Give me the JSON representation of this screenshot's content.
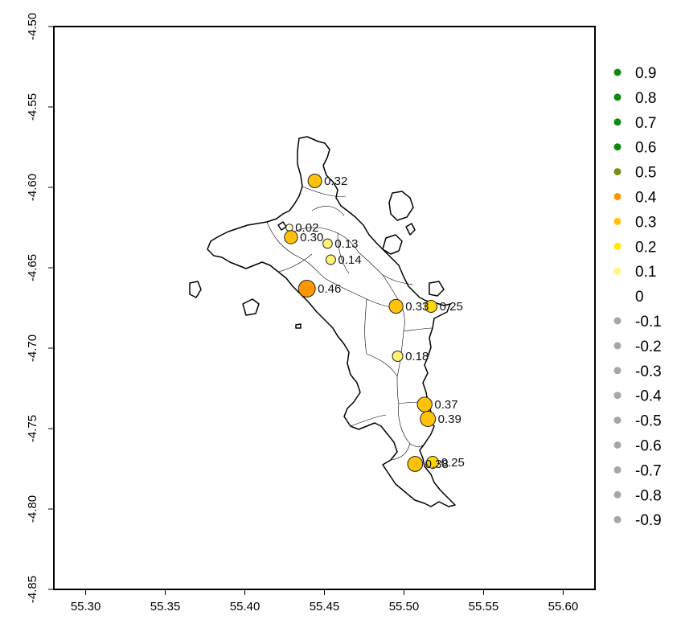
{
  "chart_data": {
    "type": "scatter",
    "title": "",
    "xlabel": "",
    "ylabel": "",
    "xlim": [
      55.28,
      55.62
    ],
    "ylim": [
      -4.85,
      -4.5
    ],
    "x_ticks": [
      "55.30",
      "55.35",
      "55.40",
      "55.45",
      "55.50",
      "55.55",
      "55.60"
    ],
    "y_ticks": [
      "-4.50",
      "-4.55",
      "-4.60",
      "-4.65",
      "-4.70",
      "-4.75",
      "-4.80",
      "-4.85"
    ],
    "points": [
      {
        "x": 55.444,
        "y": -4.596,
        "value": 0.32,
        "label": "0.32",
        "color": "#FFC20A"
      },
      {
        "x": 55.428,
        "y": -4.625,
        "value": 0.02,
        "label": "0.02",
        "color": "#FFFFCC"
      },
      {
        "x": 55.429,
        "y": -4.631,
        "value": 0.3,
        "label": "0.30",
        "color": "#FFC20A"
      },
      {
        "x": 55.452,
        "y": -4.635,
        "value": 0.13,
        "label": "0.13",
        "color": "#FFF176"
      },
      {
        "x": 55.454,
        "y": -4.645,
        "value": 0.14,
        "label": "0.14",
        "color": "#FFF176"
      },
      {
        "x": 55.439,
        "y": -4.663,
        "value": 0.46,
        "label": "0.46",
        "color": "#FF9800"
      },
      {
        "x": 55.495,
        "y": -4.674,
        "value": 0.33,
        "label": "0.33",
        "color": "#FFC20A"
      },
      {
        "x": 55.517,
        "y": -4.674,
        "value": 0.25,
        "label": "0.25",
        "color": "#FFD600"
      },
      {
        "x": 55.496,
        "y": -4.705,
        "value": 0.18,
        "label": "0.18",
        "color": "#FFF176"
      },
      {
        "x": 55.513,
        "y": -4.735,
        "value": 0.37,
        "label": "0.37",
        "color": "#FFC20A"
      },
      {
        "x": 55.515,
        "y": -4.744,
        "value": 0.39,
        "label": "0.39",
        "color": "#FFC20A"
      },
      {
        "x": 55.507,
        "y": -4.772,
        "value": 0.38,
        "label": "0.38",
        "color": "#FFC20A"
      },
      {
        "x": 55.518,
        "y": -4.771,
        "value": 0.25,
        "label": "0.25",
        "color": "#FFD600"
      }
    ],
    "legend": {
      "placement": "right",
      "entries": [
        {
          "label": "0.9",
          "color": "#0F8A0F",
          "marker": true
        },
        {
          "label": "0.8",
          "color": "#0F8A0F",
          "marker": true
        },
        {
          "label": "0.7",
          "color": "#0F8A0F",
          "marker": true
        },
        {
          "label": "0.6",
          "color": "#0F8A0F",
          "marker": true
        },
        {
          "label": "0.5",
          "color": "#7A8F12",
          "marker": true
        },
        {
          "label": "0.4",
          "color": "#FF9800",
          "marker": true
        },
        {
          "label": "0.3",
          "color": "#FFC20A",
          "marker": true
        },
        {
          "label": "0.2",
          "color": "#FFEA00",
          "marker": true
        },
        {
          "label": "0.1",
          "color": "#FFF580",
          "marker": true
        },
        {
          "label": "0",
          "color": "#FFFFFF",
          "marker": false
        },
        {
          "label": "-0.1",
          "color": "#A6A6A6",
          "marker": true
        },
        {
          "label": "-0.2",
          "color": "#A6A6A6",
          "marker": true
        },
        {
          "label": "-0.3",
          "color": "#A6A6A6",
          "marker": true
        },
        {
          "label": "-0.4",
          "color": "#A6A6A6",
          "marker": true
        },
        {
          "label": "-0.5",
          "color": "#A6A6A6",
          "marker": true
        },
        {
          "label": "-0.6",
          "color": "#A6A6A6",
          "marker": true
        },
        {
          "label": "-0.7",
          "color": "#A6A6A6",
          "marker": true
        },
        {
          "label": "-0.8",
          "color": "#A6A6A6",
          "marker": true
        },
        {
          "label": "-0.9",
          "color": "#A6A6A6",
          "marker": true
        }
      ]
    }
  }
}
